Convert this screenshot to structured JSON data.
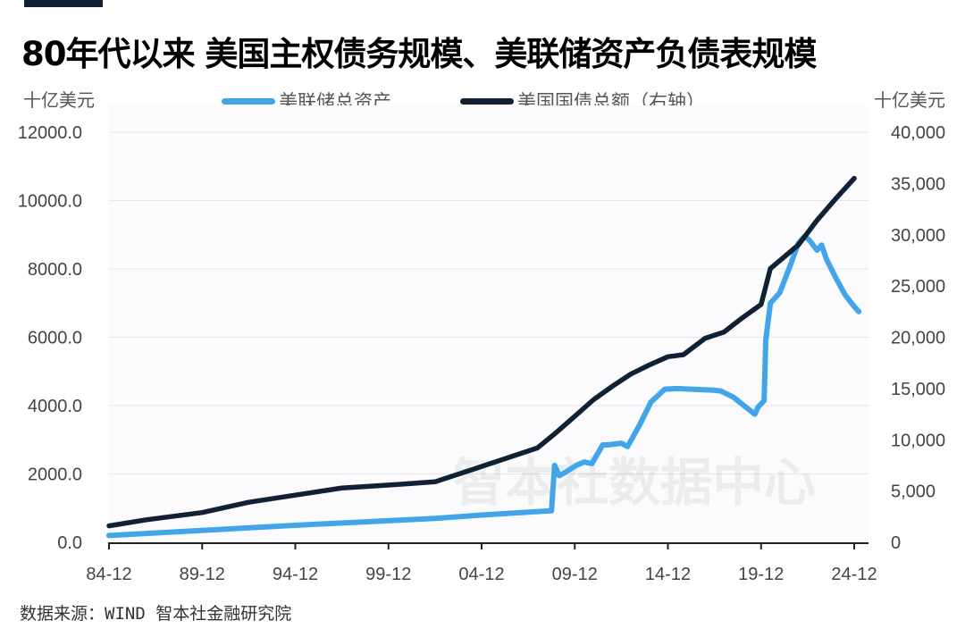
{
  "chart_data": {
    "type": "line",
    "title": "80年代以来 美国主权债务规模、美联储资产负债表规模",
    "y_left_unit": "十亿美元",
    "y_right_unit": "十亿美元",
    "y_left_ticks": [
      "0.0",
      "2000.0",
      "4000.0",
      "6000.0",
      "8000.0",
      "10000.0",
      "12000.0"
    ],
    "y_right_ticks": [
      "0",
      "5,000",
      "10,000",
      "15,000",
      "20,000",
      "25,000",
      "30,000",
      "35,000",
      "40,000"
    ],
    "ylim_left": [
      0,
      12000
    ],
    "ylim_right": [
      0,
      40000
    ],
    "x_ticks": [
      "84-12",
      "89-12",
      "94-12",
      "99-12",
      "04-12",
      "09-12",
      "14-12",
      "19-12",
      "24-12"
    ],
    "grid": true,
    "legend_position": "top",
    "series": [
      {
        "name": "美联储总资产",
        "axis": "left",
        "color": "#42a5ea",
        "points": [
          [
            "1984-12",
            200
          ],
          [
            "1995-01",
            500
          ],
          [
            "2002-06",
            700
          ],
          [
            "2005-01",
            800
          ],
          [
            "2007-12",
            900
          ],
          [
            "2008-09",
            920
          ],
          [
            "2008-11",
            2250
          ],
          [
            "2009-02",
            1950
          ],
          [
            "2009-06",
            2050
          ],
          [
            "2010-01",
            2250
          ],
          [
            "2010-06",
            2350
          ],
          [
            "2010-11",
            2300
          ],
          [
            "2011-06",
            2850
          ],
          [
            "2011-09",
            2850
          ],
          [
            "2012-06",
            2900
          ],
          [
            "2012-10",
            2800
          ],
          [
            "2013-06",
            3450
          ],
          [
            "2014-01",
            4100
          ],
          [
            "2014-10",
            4480
          ],
          [
            "2015-06",
            4500
          ],
          [
            "2017-06",
            4450
          ],
          [
            "2017-10",
            4430
          ],
          [
            "2018-06",
            4250
          ],
          [
            "2019-08",
            3750
          ],
          [
            "2019-10",
            3950
          ],
          [
            "2020-02",
            4150
          ],
          [
            "2020-03",
            5900
          ],
          [
            "2020-06",
            7000
          ],
          [
            "2020-12",
            7300
          ],
          [
            "2021-06",
            8000
          ],
          [
            "2021-12",
            8750
          ],
          [
            "2022-04",
            8950
          ],
          [
            "2022-07",
            8850
          ],
          [
            "2022-12",
            8550
          ],
          [
            "2023-03",
            8700
          ],
          [
            "2023-06",
            8300
          ],
          [
            "2023-12",
            7750
          ],
          [
            "2024-06",
            7250
          ],
          [
            "2024-12",
            6900
          ],
          [
            "2025-03",
            6750
          ]
        ]
      },
      {
        "name": "美国国债总额（右轴）",
        "axis": "right",
        "color": "#0f2133",
        "points": [
          [
            "1984-12",
            1600
          ],
          [
            "1986-12",
            2200
          ],
          [
            "1989-12",
            2900
          ],
          [
            "1992-06",
            3900
          ],
          [
            "1994-12",
            4600
          ],
          [
            "1997-06",
            5300
          ],
          [
            "2000-06",
            5650
          ],
          [
            "2002-06",
            5900
          ],
          [
            "2004-12",
            7400
          ],
          [
            "2007-12",
            9200
          ],
          [
            "2008-12",
            10700
          ],
          [
            "2009-12",
            12300
          ],
          [
            "2010-12",
            13900
          ],
          [
            "2011-12",
            15200
          ],
          [
            "2012-12",
            16400
          ],
          [
            "2013-12",
            17300
          ],
          [
            "2014-12",
            18100
          ],
          [
            "2015-10",
            18300
          ],
          [
            "2016-12",
            19900
          ],
          [
            "2017-12",
            20500
          ],
          [
            "2018-12",
            21900
          ],
          [
            "2019-12",
            23200
          ],
          [
            "2020-06",
            26700
          ],
          [
            "2021-12",
            29000
          ],
          [
            "2022-12",
            31400
          ],
          [
            "2023-12",
            33500
          ],
          [
            "2024-12",
            35500
          ]
        ]
      }
    ]
  },
  "watermark": "智本社数据中心",
  "source": "数据来源：WIND 智本社金融研究院"
}
